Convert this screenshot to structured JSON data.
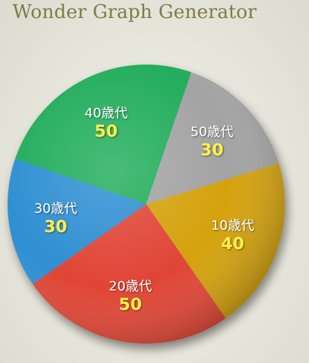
{
  "app": {
    "title": "Wonder Graph Generator"
  },
  "chart_data": {
    "type": "pie",
    "title": "",
    "start_angle_deg": -17,
    "direction": "clockwise",
    "slices": [
      {
        "label": "10歳代",
        "value": 40,
        "color": "#d4a20c"
      },
      {
        "label": "20歳代",
        "value": 50,
        "color": "#e04434"
      },
      {
        "label": "30歳代",
        "value": 30,
        "color": "#2f8fd2"
      },
      {
        "label": "40歳代",
        "value": 50,
        "color": "#22ad5c"
      },
      {
        "label": "50歳代",
        "value": 30,
        "color": "#a3a3a3"
      }
    ]
  }
}
